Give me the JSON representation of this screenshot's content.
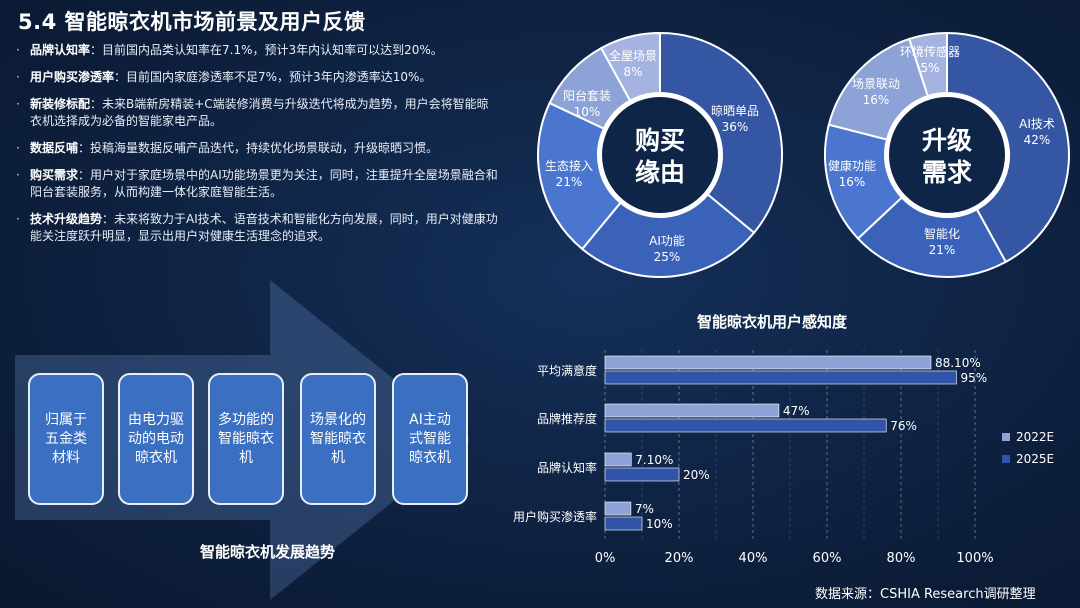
{
  "title": "5.4 智能晾衣机市场前景及用户反馈",
  "bullets": [
    {
      "head": "品牌认知率",
      "text": "：目前国内品类认知率在7.1%，预计3年内认知率可以达到20%。"
    },
    {
      "head": "用户购买渗透率",
      "text": "：目前国内家庭渗透率不足7%，预计3年内渗透率达10%。"
    },
    {
      "head": "新装修标配",
      "text": "：未来B端新房精装+C端装修消费与升级迭代将成为趋势，用户会将智能晾衣机选择成为必备的智能家电产品。"
    },
    {
      "head": "数据反哺",
      "text": "：投稿海量数据反哺产品迭代，持续优化场景联动，升级晾晒习惯。"
    },
    {
      "head": "购买需求",
      "text": "：用户对于家庭场景中的AI功能场景更为关注，同时，注重提升全屋场景融合和阳台套装服务，从而构建一体化家庭智能生活。"
    },
    {
      "head": "技术升级趋势",
      "text": "：未来将致力于AI技术、语音技术和智能化方向发展，同时，用户对健康功能关注度跃升明显，显示出用户对健康生活理念的追求。"
    }
  ],
  "stages": [
    "归属于五金类材料",
    "由电力驱动的电动晾衣机",
    "多功能的智能晾衣机",
    "场景化的智能晾衣机",
    "AI主动式智能晾衣机"
  ],
  "stages_lines": [
    [
      "归属于",
      "五金类",
      "材料"
    ],
    [
      "由电力驱",
      "动的电动",
      "晾衣机"
    ],
    [
      "多功能的",
      "智能晾衣",
      "机"
    ],
    [
      "场景化的",
      "智能晾衣",
      "机"
    ],
    [
      "AI主动",
      "式智能",
      "晾衣机"
    ]
  ],
  "arrow_label": "智能晾衣机发展趋势",
  "source": "数据来源：CSHIA Research调研整理",
  "colors": {
    "background": "#0d1f3c",
    "stage_fill": "#3a6fc1",
    "bar_2022": "#8fa2d8",
    "bar_2025": "#3154a8"
  },
  "chart_data": [
    {
      "type": "pie",
      "variant": "donut",
      "center_label": [
        "购买",
        "缘由"
      ],
      "slices": [
        {
          "label": "晾晒单品",
          "value": 36,
          "value_label": "36%",
          "color": "#3456a3"
        },
        {
          "label": "AI功能",
          "value": 25,
          "value_label": "25%",
          "color": "#3a62b8"
        },
        {
          "label": "生态接入",
          "value": 21,
          "value_label": "21%",
          "color": "#4a76cf"
        },
        {
          "label": "阳台套装",
          "value": 10,
          "value_label": "10%",
          "color": "#8da2d6"
        },
        {
          "label": "全屋场景",
          "value": 8,
          "value_label": "8%",
          "color": "#a4b3df"
        }
      ]
    },
    {
      "type": "pie",
      "variant": "donut",
      "center_label": [
        "升级",
        "需求"
      ],
      "slices": [
        {
          "label": "AI技术",
          "value": 42,
          "value_label": "42%",
          "color": "#3456a3"
        },
        {
          "label": "智能化",
          "value": 21,
          "value_label": "21%",
          "color": "#3a62b8"
        },
        {
          "label": "健康功能",
          "value": 16,
          "value_label": "16%",
          "color": "#4a76cf"
        },
        {
          "label": "场景联动",
          "value": 16,
          "value_label": "16%",
          "color": "#8da2d6"
        },
        {
          "label": "环境传感器",
          "value": 5,
          "value_label": "5%",
          "color": "#a4b3df"
        }
      ]
    },
    {
      "type": "bar",
      "orientation": "horizontal",
      "title": "智能晾衣机用户感知度",
      "categories": [
        "平均满意度",
        "品牌推荐度",
        "品牌认知率",
        "用户购买渗透率"
      ],
      "series": [
        {
          "name": "2022E",
          "values": [
            88.1,
            47,
            7.1,
            7
          ],
          "labels": [
            "88.10%",
            "47%",
            "7.10%",
            "7%"
          ]
        },
        {
          "name": "2025E",
          "values": [
            95,
            76,
            20,
            10
          ],
          "labels": [
            "95%",
            "76%",
            "20%",
            "10%"
          ]
        }
      ],
      "xlim": [
        0,
        100
      ],
      "xticks": [
        "0%",
        "20%",
        "40%",
        "60%",
        "80%",
        "100%"
      ],
      "grid": true,
      "legend": "right"
    }
  ]
}
